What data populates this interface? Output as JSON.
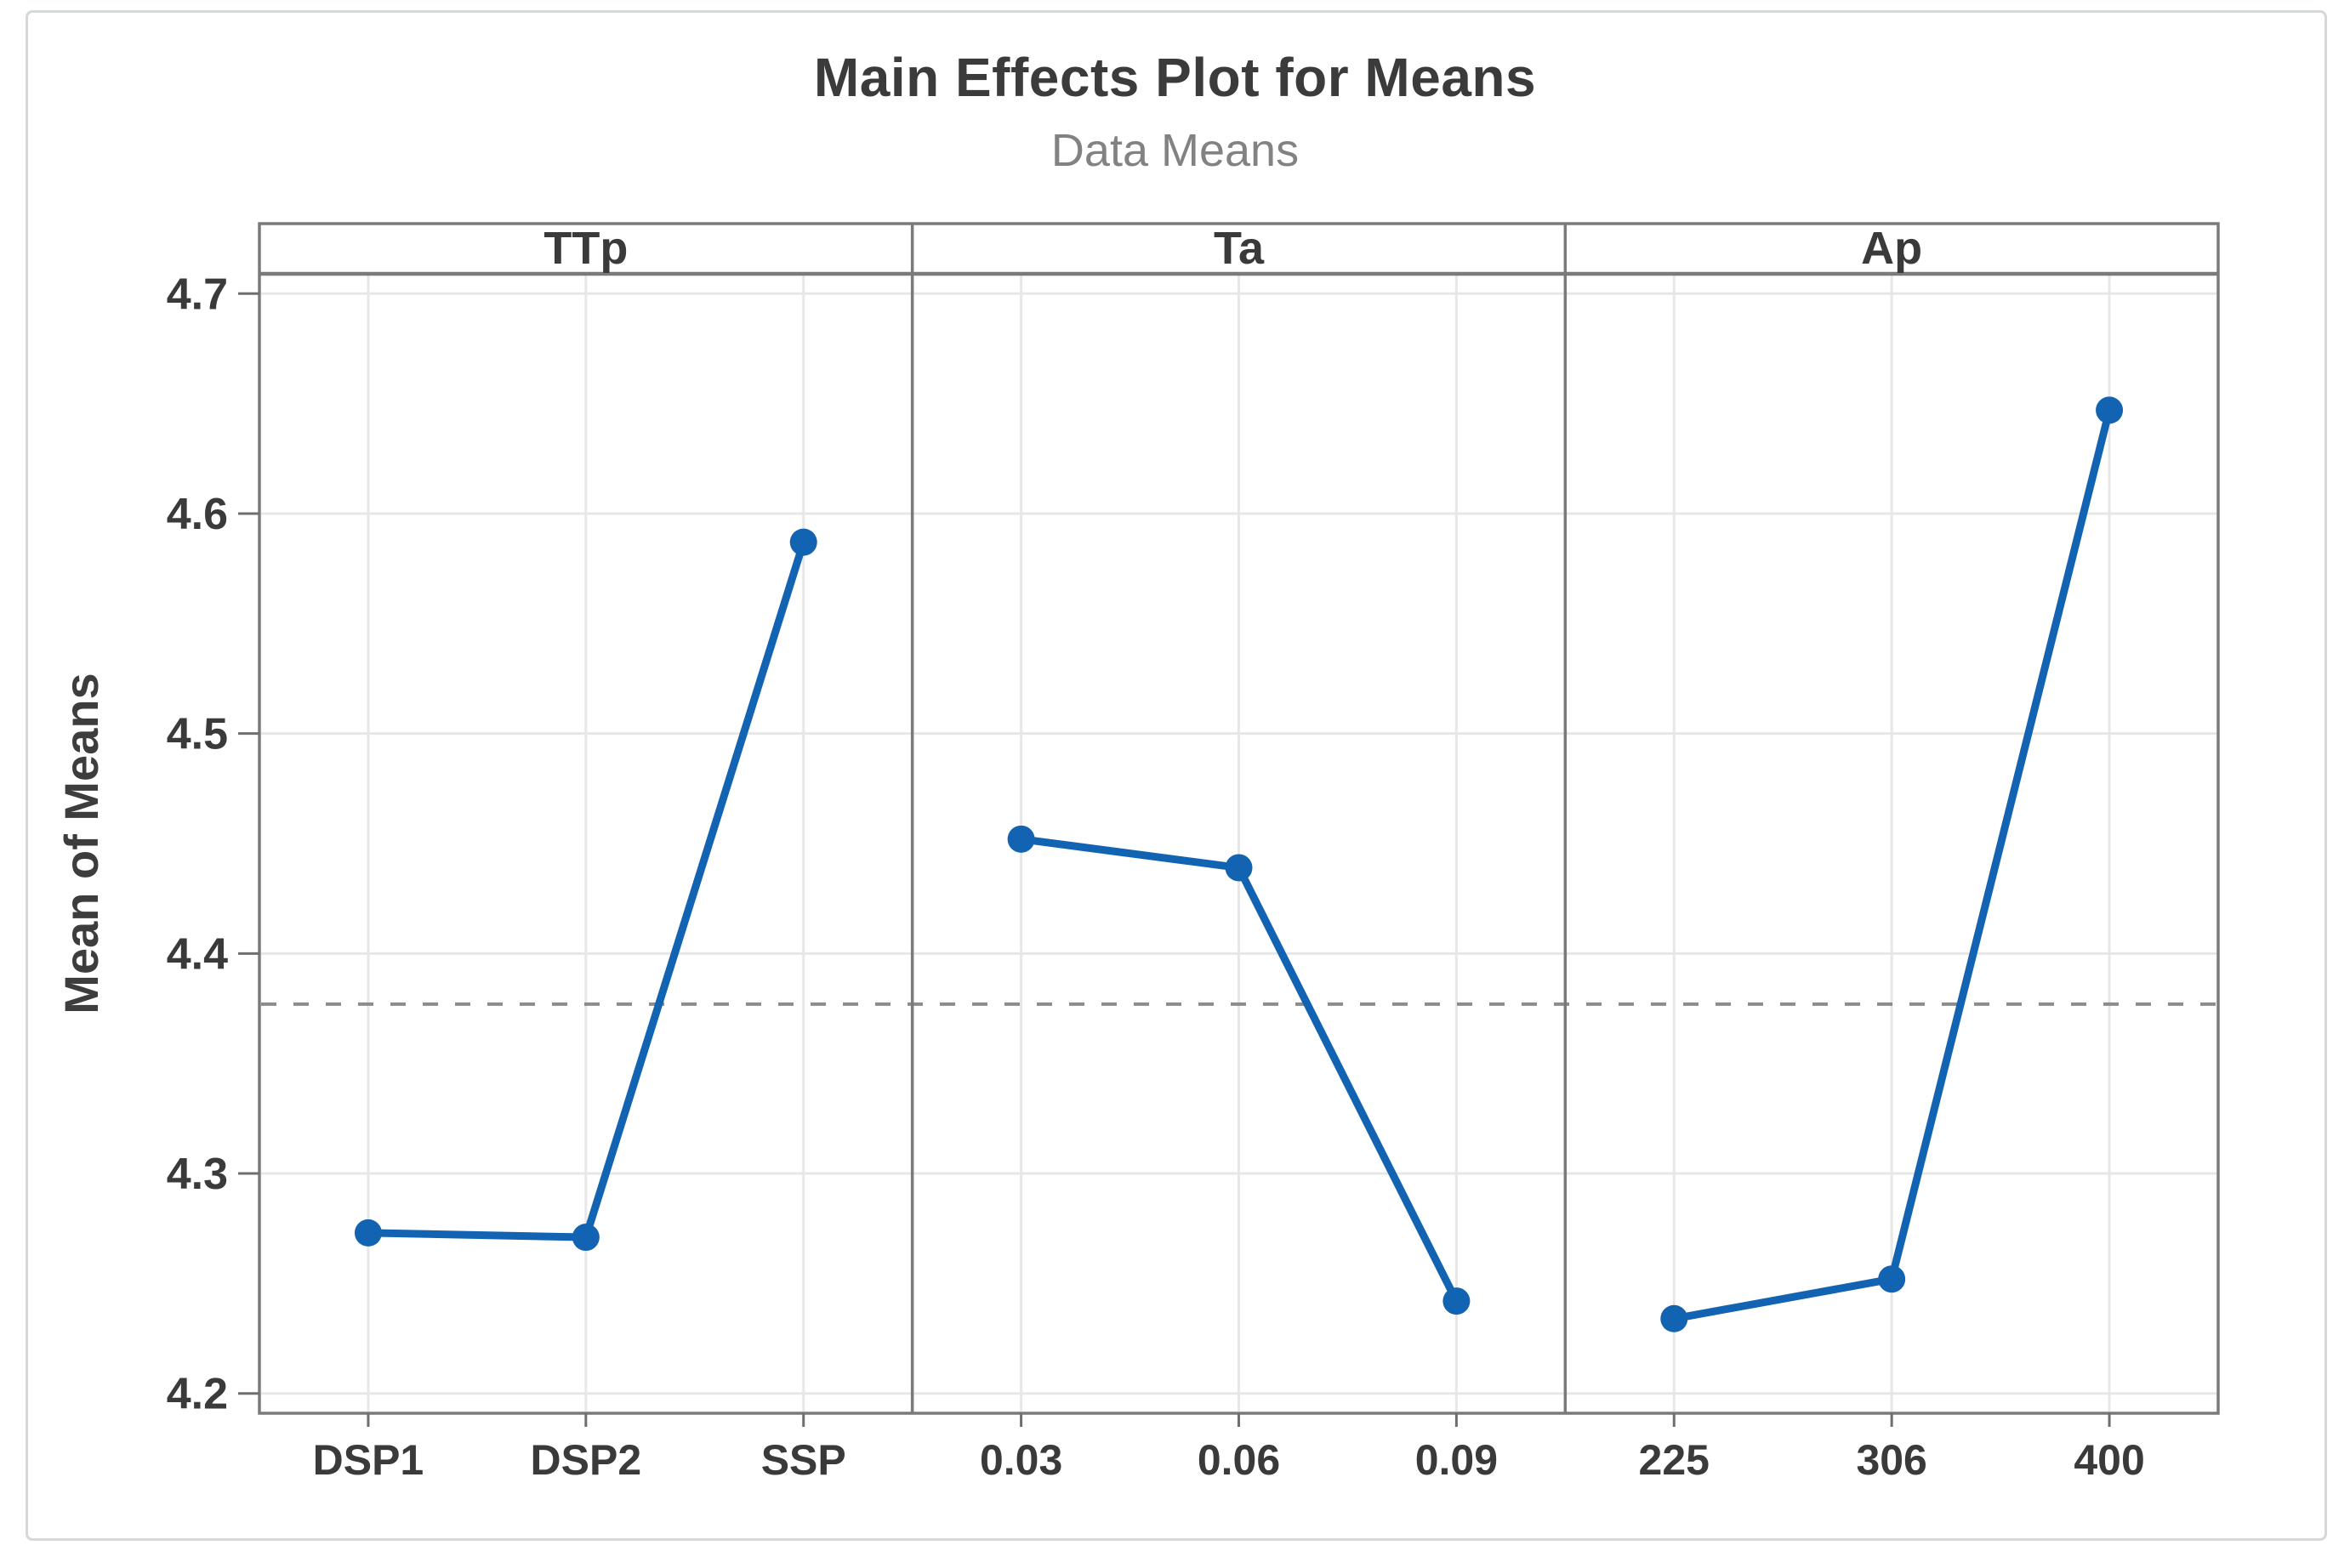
{
  "page": {
    "background": "#ffffff",
    "border_color": "#d5d8d8"
  },
  "colors": {
    "series_line": "#1264B2",
    "series_marker": "#1264B2",
    "frame": "#7a7a7a",
    "grid": "#e7e7e7",
    "mean_line": "#8c8c8c",
    "tick": "#6e6e6e",
    "tick_text": "#3a3a3a",
    "header_text": "#3a3a3a",
    "axis_title_text": "#3d3d3d",
    "title_text": "#3b3b3b",
    "subtitle_text": "#828282"
  },
  "chart_data": {
    "type": "line",
    "title": "Main Effects Plot for Means",
    "subtitle": "Data Means",
    "ylabel": "Mean of Means",
    "xlabel": "",
    "y_ticks": [
      4.2,
      4.3,
      4.4,
      4.5,
      4.6,
      4.7
    ],
    "y_tick_labels": [
      "4.2",
      "4.3",
      "4.4",
      "4.5",
      "4.6",
      "4.7"
    ],
    "ylim": [
      4.191,
      4.709
    ],
    "grid": true,
    "legend": "none",
    "overall_mean": 4.377,
    "mean_line_style": "dashed",
    "panels": [
      {
        "factor": "TTp",
        "categories": [
          "DSP1",
          "DSP2",
          "SSP"
        ],
        "values": [
          4.273,
          4.271,
          4.587
        ]
      },
      {
        "factor": "Ta",
        "categories": [
          "0.03",
          "0.06",
          "0.09"
        ],
        "values": [
          4.452,
          4.439,
          4.242
        ]
      },
      {
        "factor": "Ap",
        "categories": [
          "225",
          "306",
          "400"
        ],
        "values": [
          4.234,
          4.252,
          4.647
        ]
      }
    ]
  }
}
